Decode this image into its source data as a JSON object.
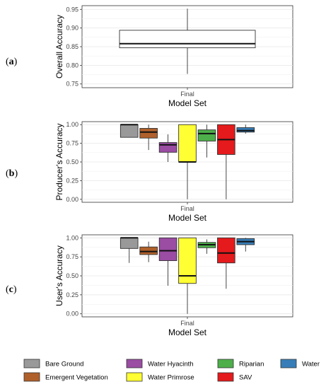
{
  "chart_data": [
    {
      "type": "boxplot",
      "panel": "(a)",
      "categories": [
        "Final"
      ],
      "xlabel": "Model Set",
      "ylabel": "Overall Accuracy",
      "ylim": [
        0.74,
        0.96
      ],
      "yticks": [
        "0.75",
        "0.80",
        "0.85",
        "0.90",
        "0.95"
      ],
      "series": [
        {
          "label": "Overall",
          "color": "#ffffff",
          "min": 0.777,
          "q1": 0.847,
          "median": 0.858,
          "q3": 0.894,
          "max": 0.952
        }
      ]
    },
    {
      "type": "boxplot",
      "panel": "(b)",
      "categories": [
        "Final"
      ],
      "xlabel": "Model Set",
      "ylabel": "Producer's Accuracy",
      "ylim": [
        -0.04,
        1.04
      ],
      "yticks": [
        "0.00",
        "0.25",
        "0.50",
        "0.75",
        "1.00"
      ],
      "series": [
        {
          "label": "Bare Ground",
          "color": "#999999",
          "min": 0.83,
          "q1": 0.83,
          "median": 1.0,
          "q3": 1.0,
          "max": 1.0
        },
        {
          "label": "Emergent Vegetation",
          "color": "#b0602a",
          "min": 0.66,
          "q1": 0.82,
          "median": 0.9,
          "q3": 0.95,
          "max": 1.0
        },
        {
          "label": "Water Hyacinth",
          "color": "#9b4ca3",
          "min": 0.5,
          "q1": 0.63,
          "median": 0.73,
          "q3": 0.76,
          "max": 0.87
        },
        {
          "label": "Water Primrose",
          "color": "#ffff33",
          "min": 0.0,
          "q1": 0.5,
          "median": 0.5,
          "q3": 1.0,
          "max": 1.0
        },
        {
          "label": "Riparian",
          "color": "#4daf4a",
          "min": 0.56,
          "q1": 0.78,
          "median": 0.88,
          "q3": 0.93,
          "max": 1.0
        },
        {
          "label": "SAV",
          "color": "#e41a1c",
          "min": 0.0,
          "q1": 0.6,
          "median": 0.8,
          "q3": 1.0,
          "max": 1.0
        },
        {
          "label": "Water",
          "color": "#377eb8",
          "min": 0.88,
          "q1": 0.9,
          "median": 0.92,
          "q3": 0.96,
          "max": 1.0
        }
      ]
    },
    {
      "type": "boxplot",
      "panel": "(c)",
      "categories": [
        "Final"
      ],
      "xlabel": "Model Set",
      "ylabel": "User's Accuracy",
      "ylim": [
        -0.04,
        1.04
      ],
      "yticks": [
        "0.00",
        "0.25",
        "0.50",
        "0.75",
        "1.00"
      ],
      "series": [
        {
          "label": "Bare Ground",
          "color": "#999999",
          "min": 0.67,
          "q1": 0.86,
          "median": 1.0,
          "q3": 1.0,
          "max": 1.0
        },
        {
          "label": "Emergent Vegetation",
          "color": "#b0602a",
          "min": 0.68,
          "q1": 0.78,
          "median": 0.82,
          "q3": 0.88,
          "max": 0.95
        },
        {
          "label": "Water Hyacinth",
          "color": "#9b4ca3",
          "min": 0.37,
          "q1": 0.7,
          "median": 0.83,
          "q3": 1.0,
          "max": 1.0
        },
        {
          "label": "Water Primrose",
          "color": "#ffff33",
          "min": 0.0,
          "q1": 0.4,
          "median": 0.5,
          "q3": 1.0,
          "max": 1.0
        },
        {
          "label": "Riparian",
          "color": "#4daf4a",
          "min": 0.79,
          "q1": 0.87,
          "median": 0.91,
          "q3": 0.94,
          "max": 0.98
        },
        {
          "label": "SAV",
          "color": "#e41a1c",
          "min": 0.33,
          "q1": 0.67,
          "median": 0.8,
          "q3": 1.0,
          "max": 1.0
        },
        {
          "label": "Water",
          "color": "#377eb8",
          "min": 0.82,
          "q1": 0.91,
          "median": 0.95,
          "q3": 0.99,
          "max": 1.0
        }
      ]
    }
  ]
}
